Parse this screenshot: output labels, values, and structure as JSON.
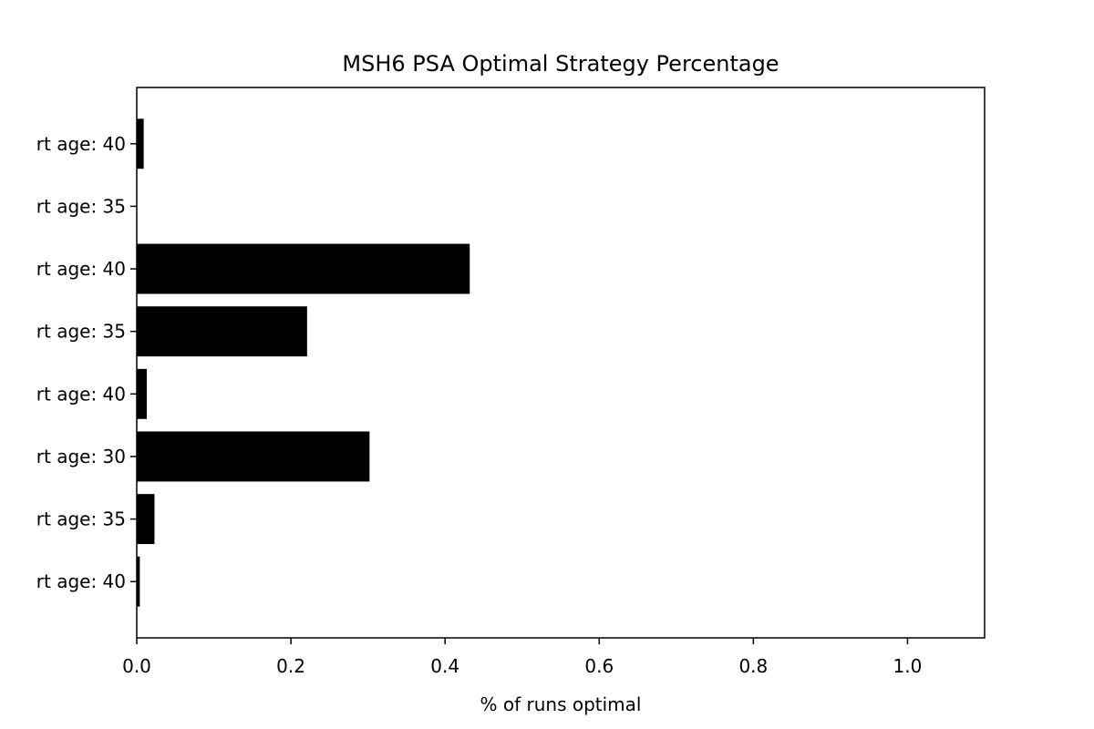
{
  "chart_data": {
    "type": "bar",
    "orientation": "horizontal",
    "title": "MSH6 PSA Optimal Strategy Percentage",
    "xlabel": "% of runs optimal",
    "ylabel": "",
    "xlim": [
      0,
      1.1
    ],
    "xticks": [
      0.0,
      0.2,
      0.4,
      0.6,
      0.8,
      1.0
    ],
    "xtick_labels": [
      "0.0",
      "0.2",
      "0.4",
      "0.6",
      "0.8",
      "1.0"
    ],
    "categories": [
      "rt age: 40",
      "rt age: 35",
      "rt age: 30",
      "rt age: 40",
      "rt age: 35",
      "rt age: 40",
      "rt age: 35",
      "rt age: 40"
    ],
    "values": [
      0.004,
      0.023,
      0.302,
      0.013,
      0.221,
      0.432,
      0.0,
      0.009
    ],
    "bar_color": "#000000",
    "grid": false,
    "legend": "none"
  }
}
